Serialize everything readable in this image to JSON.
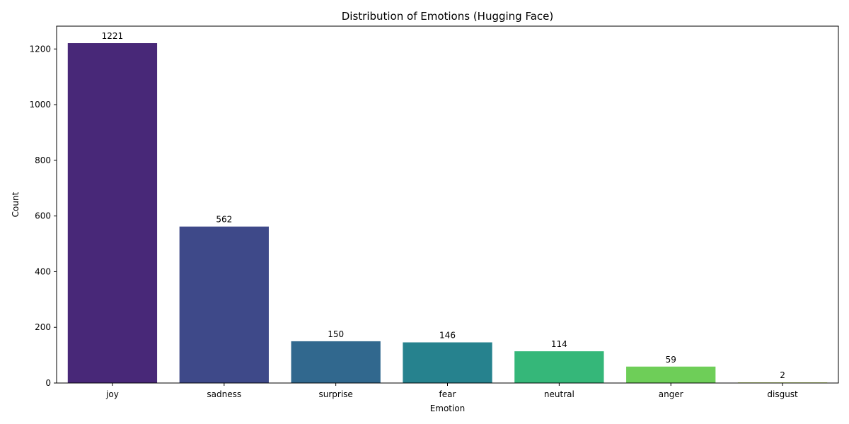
{
  "chart_data": {
    "type": "bar",
    "title": "Distribution of Emotions (Hugging Face)",
    "xlabel": "Emotion",
    "ylabel": "Count",
    "categories": [
      "joy",
      "sadness",
      "surprise",
      "fear",
      "neutral",
      "anger",
      "disgust"
    ],
    "values": [
      1221,
      562,
      150,
      146,
      114,
      59,
      2
    ],
    "colors": [
      "#482878",
      "#3e4989",
      "#31688e",
      "#26828e",
      "#35b779",
      "#6ece58",
      "#b5de2b"
    ],
    "ylim": [
      0,
      1282
    ],
    "yticks": [
      0,
      200,
      400,
      600,
      800,
      1000,
      1200
    ],
    "grid": false,
    "legend": "none"
  }
}
